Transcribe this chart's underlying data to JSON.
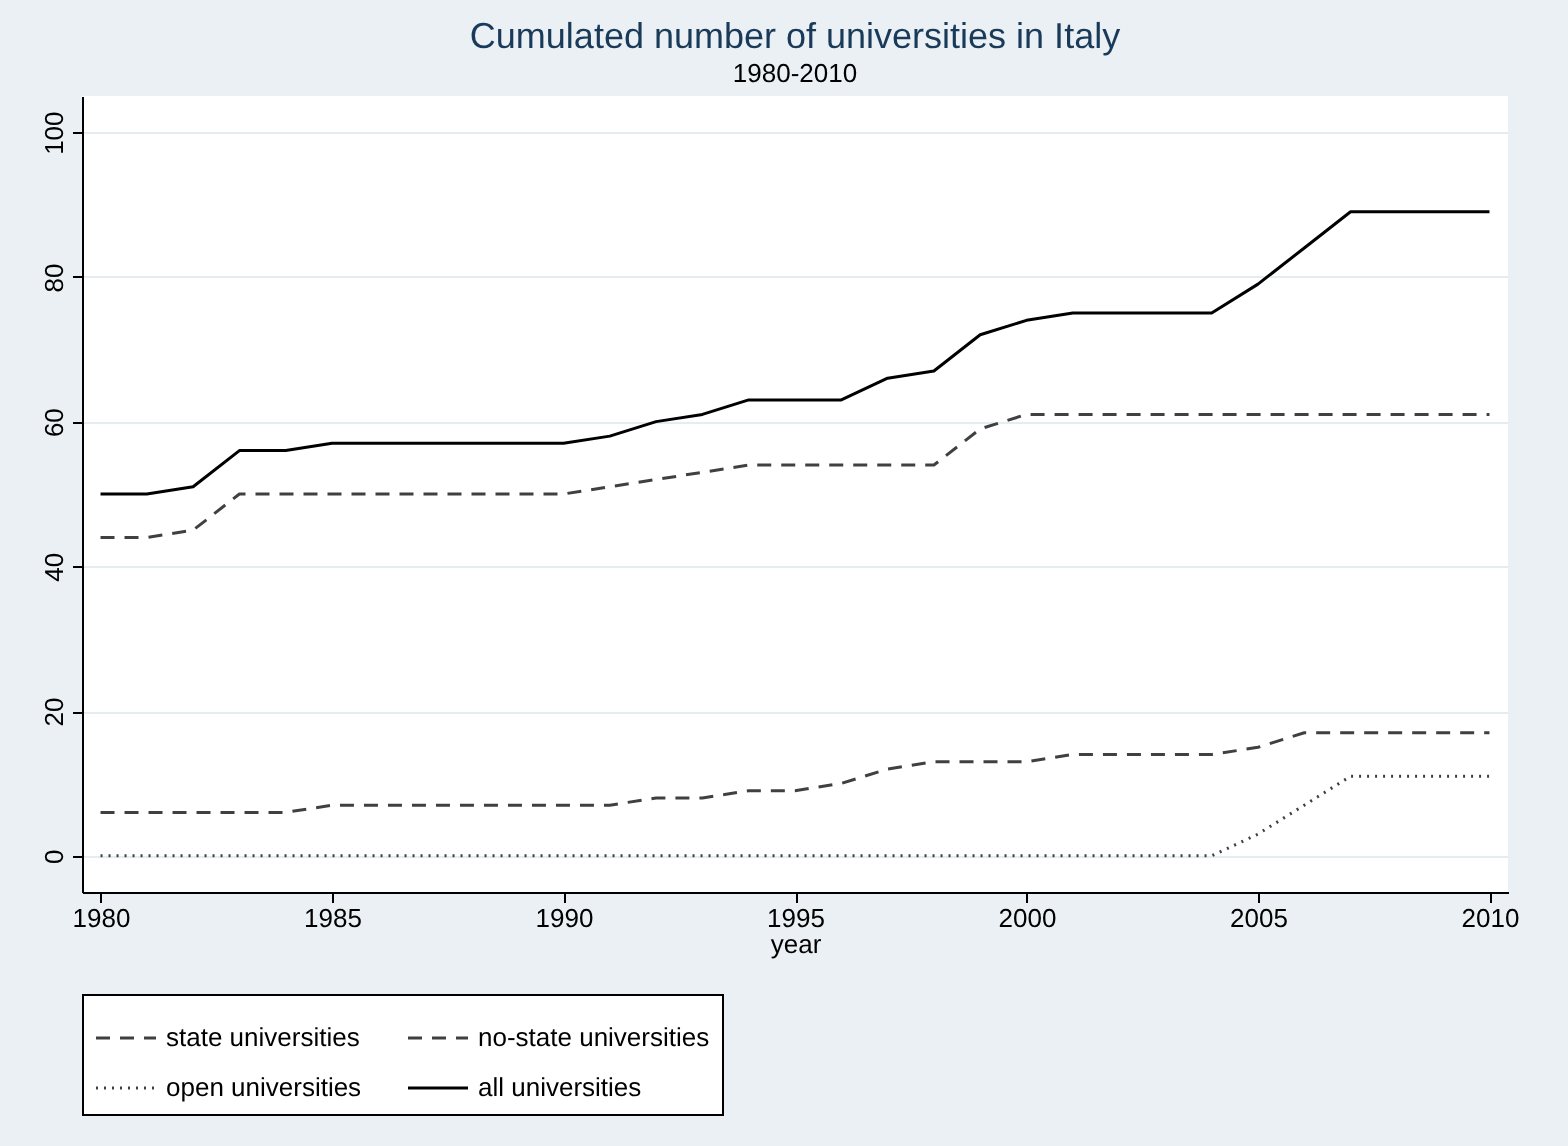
{
  "chart_data": {
    "type": "line",
    "title": "Cumulated number of universities in Italy",
    "subtitle": "1980-2010",
    "xlabel": "year",
    "x": [
      1980,
      1981,
      1982,
      1983,
      1984,
      1985,
      1986,
      1987,
      1988,
      1989,
      1990,
      1991,
      1992,
      1993,
      1994,
      1995,
      1996,
      1997,
      1998,
      1999,
      2000,
      2001,
      2002,
      2003,
      2004,
      2005,
      2006,
      2007,
      2008,
      2009,
      2010
    ],
    "series": [
      {
        "name": "state universities",
        "color": "#404040",
        "line_style": "dashed",
        "values": [
          44,
          44,
          45,
          50,
          50,
          50,
          50,
          50,
          50,
          50,
          50,
          51,
          52,
          53,
          54,
          54,
          54,
          54,
          54,
          59,
          61,
          61,
          61,
          61,
          61,
          61,
          61,
          61,
          61,
          61,
          61
        ]
      },
      {
        "name": "no-state universities",
        "color": "#404040",
        "line_style": "dashed",
        "values": [
          6,
          6,
          6,
          6,
          6,
          7,
          7,
          7,
          7,
          7,
          7,
          7,
          8,
          8,
          9,
          9,
          10,
          12,
          13,
          13,
          13,
          14,
          14,
          14,
          14,
          15,
          17,
          17,
          17,
          17,
          17
        ]
      },
      {
        "name": "open universities",
        "color": "#404040",
        "line_style": "dotted",
        "values": [
          0,
          0,
          0,
          0,
          0,
          0,
          0,
          0,
          0,
          0,
          0,
          0,
          0,
          0,
          0,
          0,
          0,
          0,
          0,
          0,
          0,
          0,
          0,
          0,
          0,
          3,
          7,
          11,
          11,
          11,
          11
        ]
      },
      {
        "name": "all universities",
        "color": "#000000",
        "line_style": "solid",
        "values": [
          50,
          50,
          51,
          56,
          56,
          57,
          57,
          57,
          57,
          57,
          57,
          58,
          60,
          61,
          63,
          63,
          63,
          66,
          67,
          72,
          74,
          75,
          75,
          75,
          75,
          79,
          84,
          89,
          89,
          89,
          89
        ]
      }
    ],
    "xlim": [
      1979.6,
      2010.4
    ],
    "xticks": [
      1980,
      1985,
      1990,
      1995,
      2000,
      2005,
      2010
    ],
    "ylim": [
      -5,
      105
    ],
    "yticks": [
      0,
      20,
      40,
      60,
      80,
      100
    ],
    "grid": "y",
    "legend": "bottom",
    "marker": "none"
  }
}
